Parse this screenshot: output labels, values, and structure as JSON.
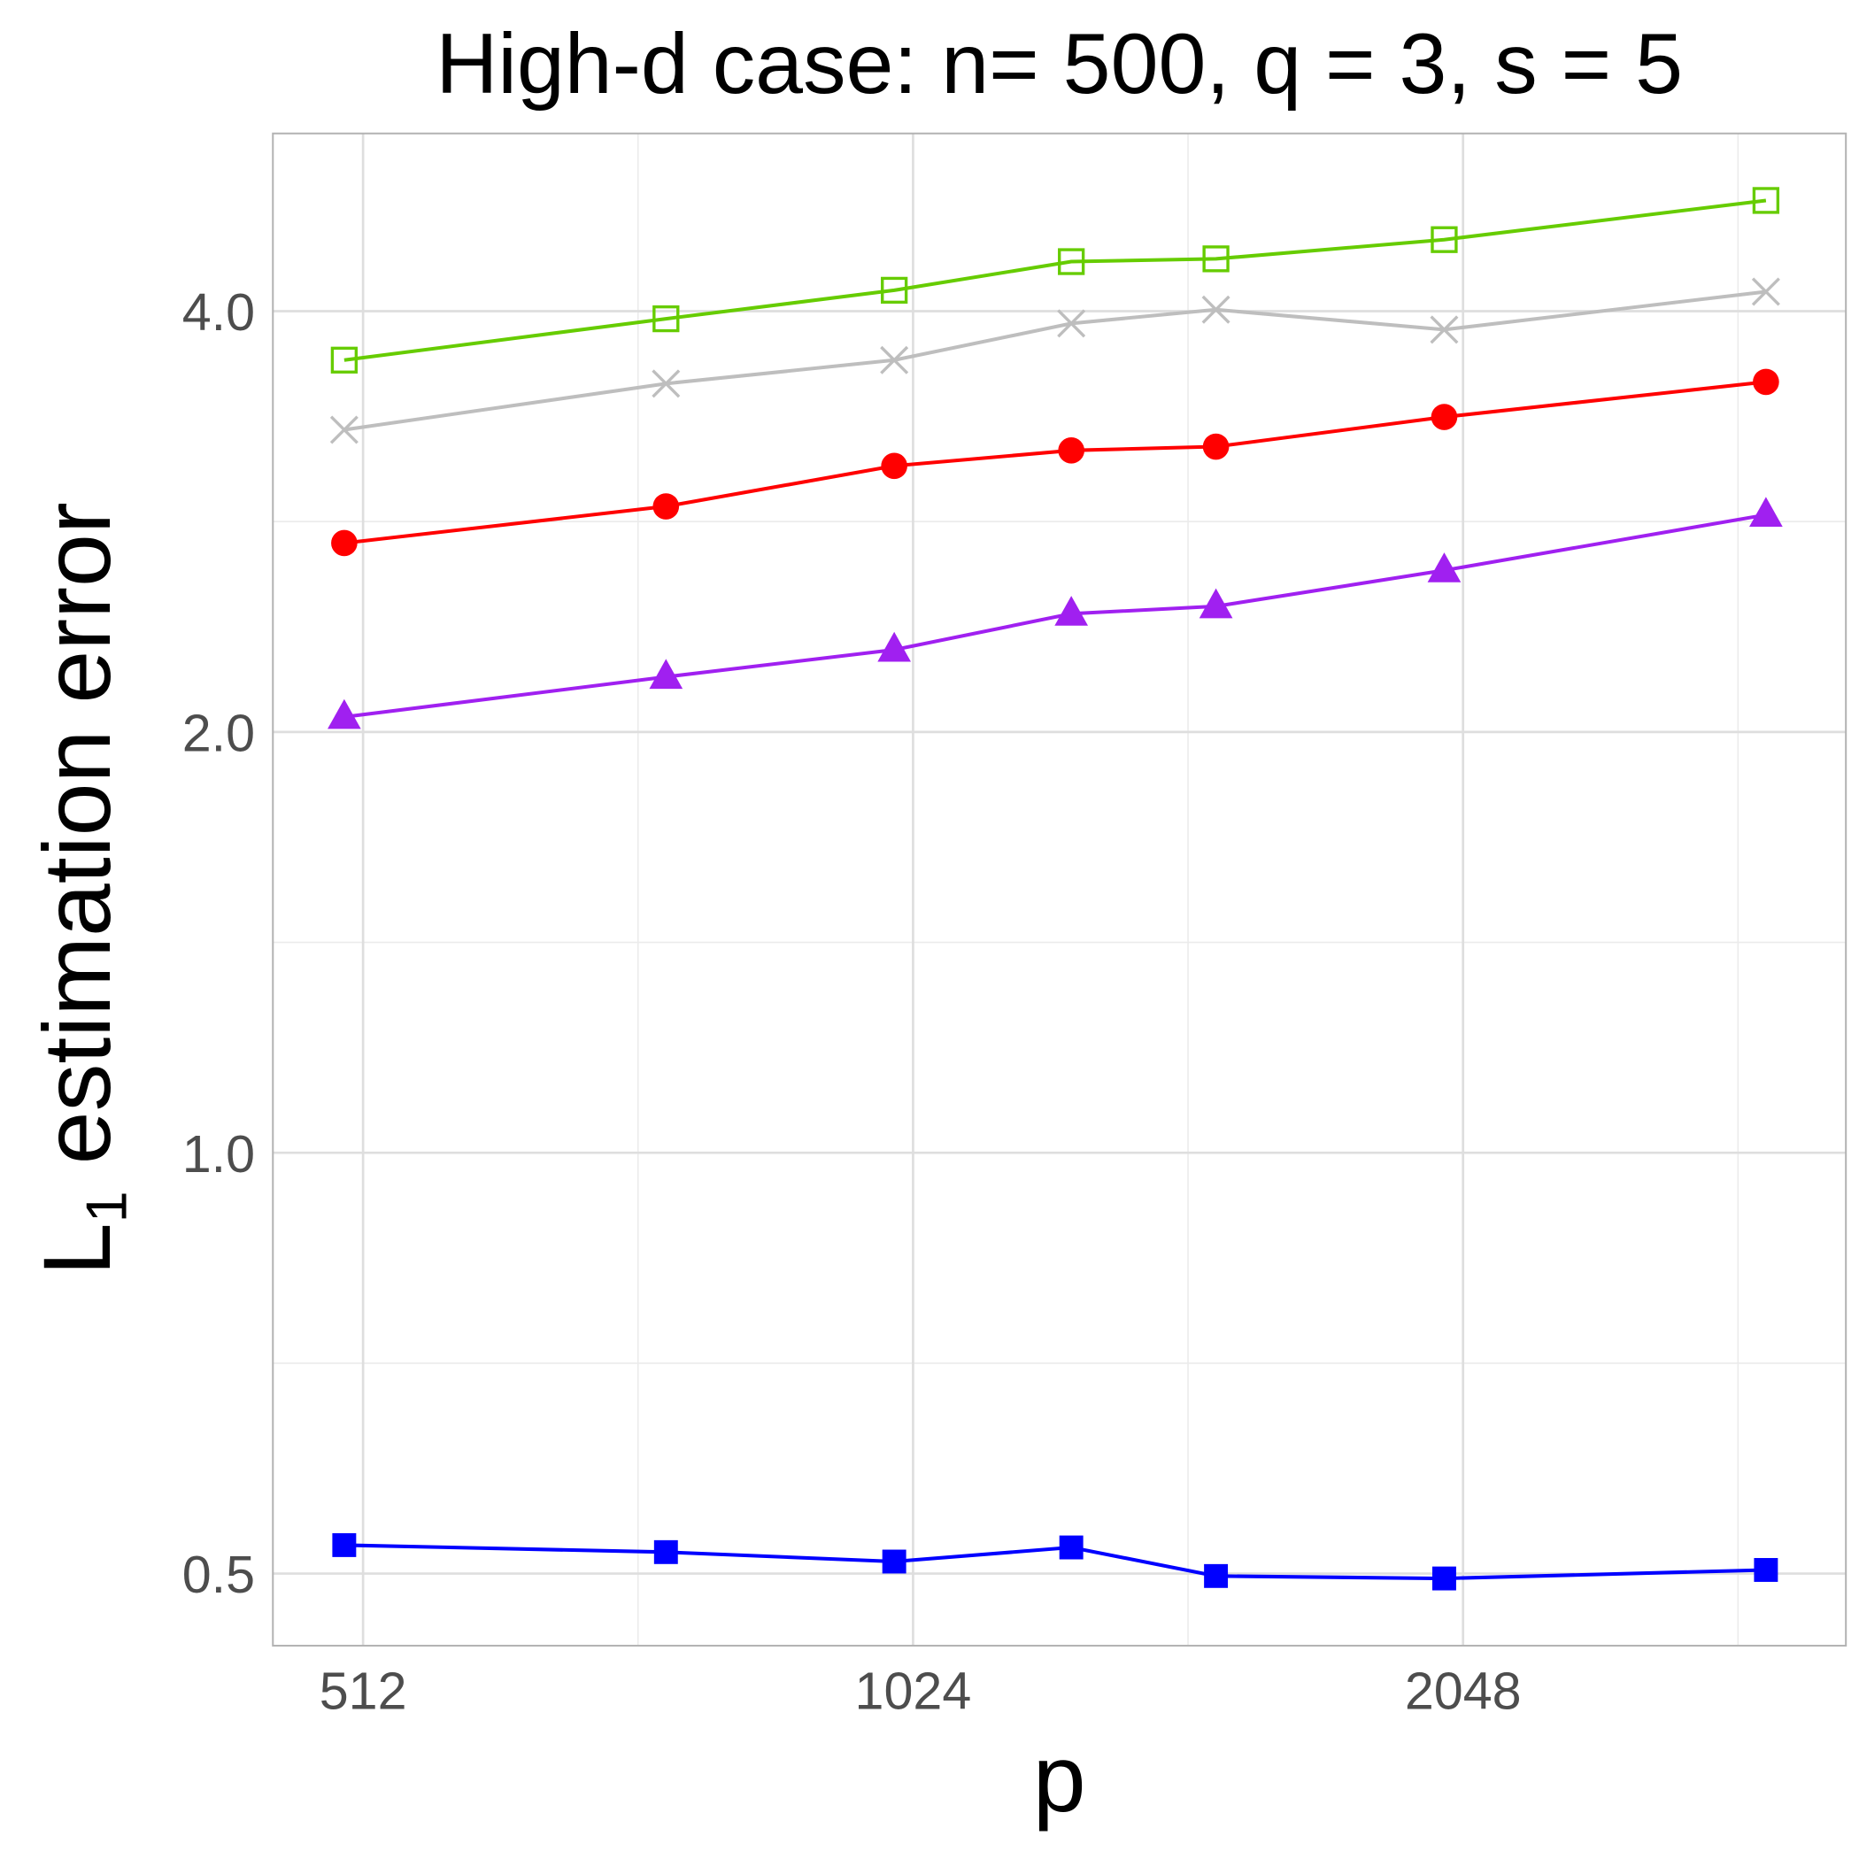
{
  "chart_data": {
    "type": "line",
    "title": "High-d case: n= 500, q = 3, s = 5",
    "xlabel": "p",
    "ylabel": "L1 estimation error",
    "ylabel_main": "L",
    "ylabel_sub": "1",
    "ylabel_rest": " estimation error",
    "x_scale": "log2",
    "y_scale": "log2",
    "xlim": [
      457,
      3318
    ],
    "ylim": [
      0.444,
      5.36
    ],
    "grid": true,
    "x_ticks": [
      512,
      1024,
      2048
    ],
    "x_tick_labels": [
      "512",
      "1024",
      "2048"
    ],
    "y_ticks": [
      0.5,
      1.0,
      2.0,
      4.0
    ],
    "y_tick_labels": [
      "0.5",
      "1.0",
      "2.0",
      "4.0"
    ],
    "x": [
      500,
      750,
      1000,
      1250,
      1500,
      2000,
      3000
    ],
    "series": [
      {
        "name": "green-open-square",
        "color": "#66cc00",
        "marker": "open-square",
        "values": [
          3.69,
          3.95,
          4.14,
          4.34,
          4.36,
          4.5,
          4.8
        ]
      },
      {
        "name": "gray-cross",
        "color": "#bebebe",
        "marker": "cross",
        "values": [
          3.29,
          3.55,
          3.69,
          3.92,
          4.01,
          3.88,
          4.13
        ]
      },
      {
        "name": "red-circle",
        "color": "#ff0000",
        "marker": "circle",
        "values": [
          2.73,
          2.9,
          3.1,
          3.18,
          3.2,
          3.36,
          3.56
        ]
      },
      {
        "name": "purple-triangle",
        "color": "#a020f0",
        "marker": "triangle",
        "values": [
          2.05,
          2.19,
          2.29,
          2.43,
          2.46,
          2.61,
          2.86
        ]
      },
      {
        "name": "blue-square",
        "color": "#0000ff",
        "marker": "filled-square",
        "values": [
          0.524,
          0.518,
          0.51,
          0.522,
          0.498,
          0.496,
          0.503
        ]
      }
    ]
  }
}
